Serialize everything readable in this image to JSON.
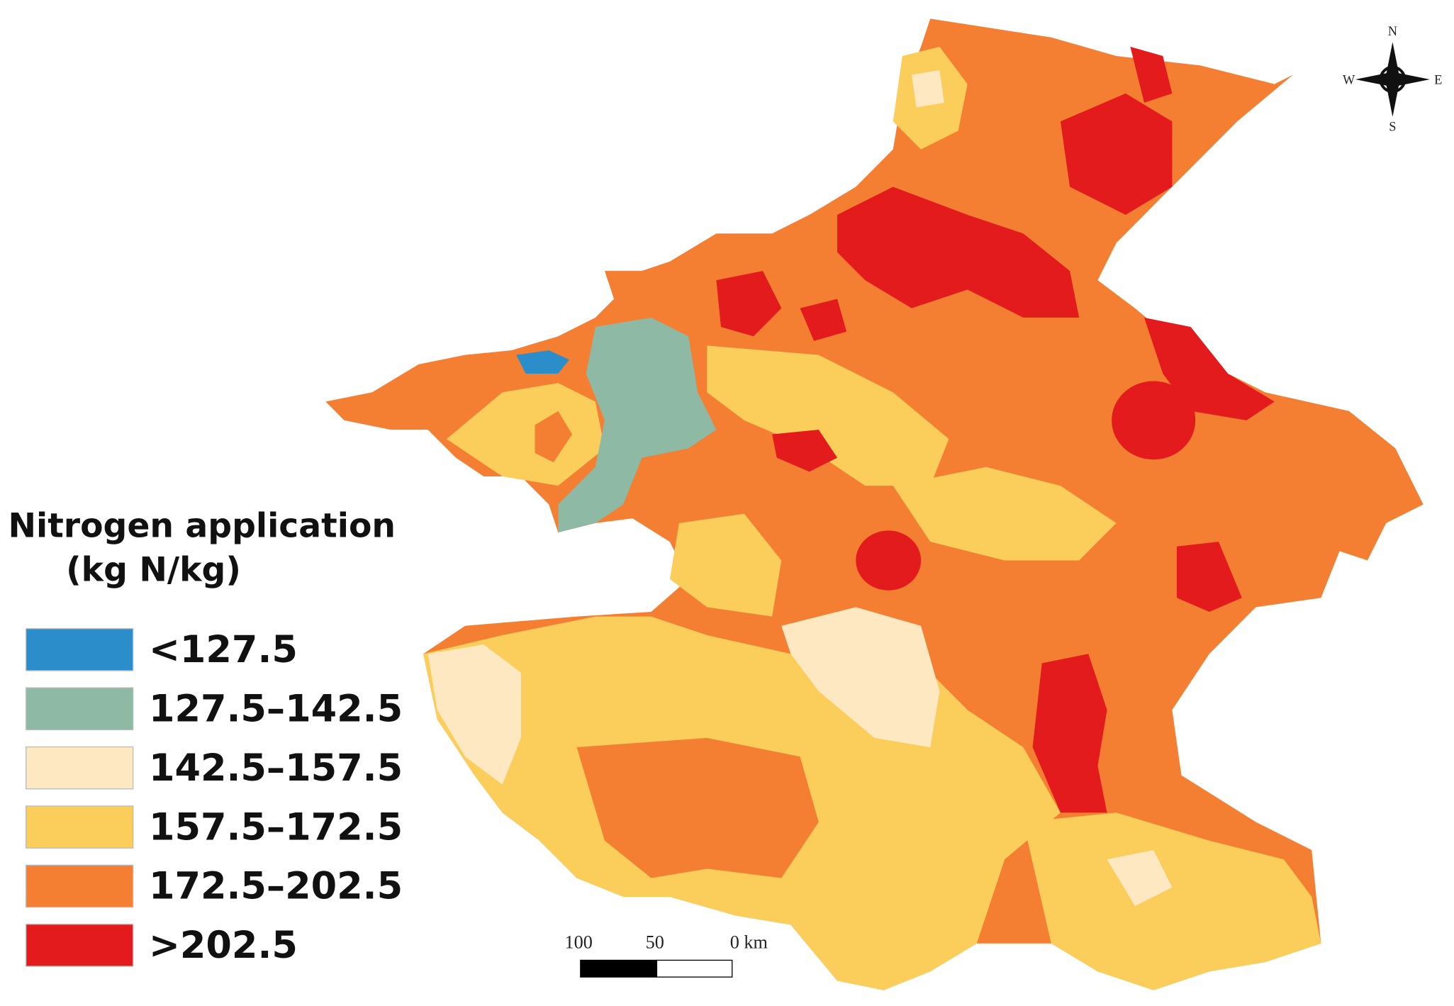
{
  "legend": {
    "title": "Nitrogen application",
    "unit": "(kg N/kg)",
    "items": [
      {
        "label": "<127.5",
        "color": "#2b8ecb"
      },
      {
        "label": "127.5–142.5",
        "color": "#8db9a5"
      },
      {
        "label": "142.5–157.5",
        "color": "#fde8c1"
      },
      {
        "label": "157.5–172.5",
        "color": "#fbcd5a"
      },
      {
        "label": "172.5–202.5",
        "color": "#f47f33"
      },
      {
        "label": ">202.5",
        "color": "#e31b1c"
      }
    ]
  },
  "scale_bar": {
    "labels": [
      "100",
      "50",
      "0 km"
    ]
  },
  "compass": {
    "n": "N",
    "s": "S",
    "w": "W",
    "e": "E"
  }
}
